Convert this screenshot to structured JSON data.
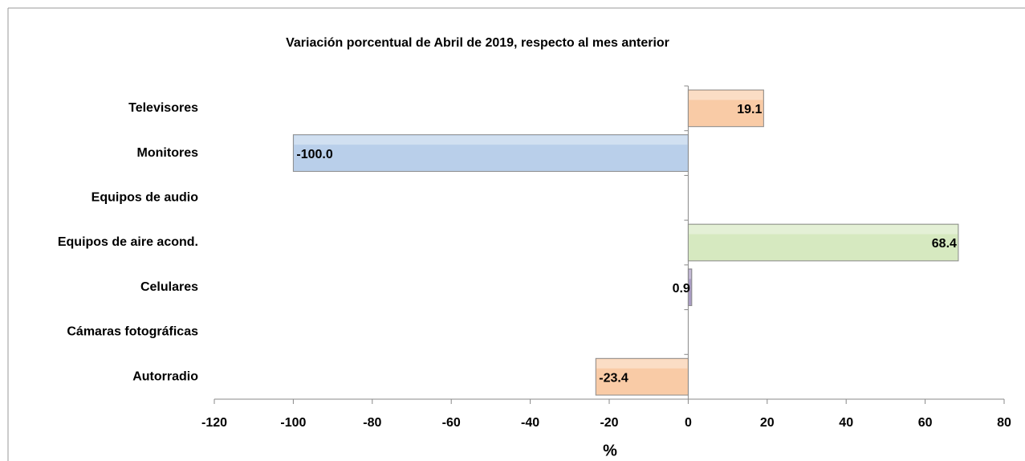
{
  "chart_data": {
    "type": "bar",
    "orientation": "horizontal",
    "title": "Variación porcentual de Abril de 2019, respecto al mes anterior",
    "x_label": "%",
    "categories": [
      "Televisores",
      "Monitores",
      "Equipos de audio",
      "Equipos de aire acond.",
      "Celulares",
      "Cámaras fotográficas",
      "Autorradio"
    ],
    "values": [
      19.1,
      -100.0,
      null,
      68.4,
      0.9,
      null,
      -23.4
    ],
    "value_labels": [
      "19.1",
      "-100.0",
      null,
      "68.4",
      "0.9",
      null,
      "-23.4"
    ],
    "colors": [
      "#f9cba6",
      "#b9cfea",
      null,
      "#d6e9c0",
      "#a99cc2",
      null,
      "#f9cba6"
    ],
    "xlim": [
      -120,
      80
    ],
    "xticks": [
      -120,
      -100,
      -80,
      -60,
      -40,
      -20,
      0,
      20,
      40,
      60,
      80
    ]
  }
}
